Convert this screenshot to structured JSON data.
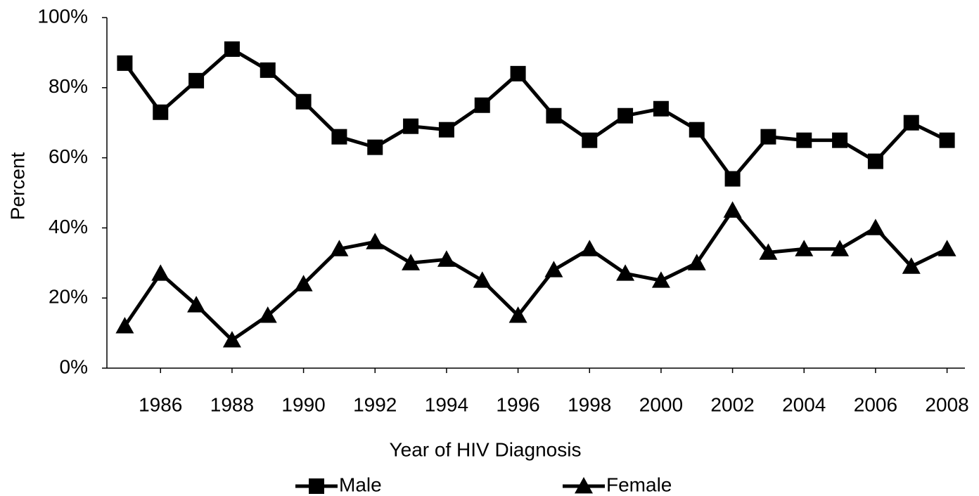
{
  "chart_data": {
    "type": "line",
    "x_label": "Year of HIV Diagnosis",
    "y_label": "Percent",
    "x": [
      1985,
      1986,
      1987,
      1988,
      1989,
      1990,
      1991,
      1992,
      1993,
      1994,
      1995,
      1996,
      1997,
      1998,
      1999,
      2000,
      2001,
      2002,
      2003,
      2004,
      2005,
      2006,
      2007,
      2008
    ],
    "xlim": [
      1984.5,
      2008.5
    ],
    "xticks": [
      1986,
      1988,
      1990,
      1992,
      1994,
      1996,
      1998,
      2000,
      2002,
      2004,
      2006,
      2008
    ],
    "ylim": [
      0,
      100
    ],
    "yticks": [
      {
        "value": 0,
        "label": "0%"
      },
      {
        "value": 20,
        "label": "20%"
      },
      {
        "value": 40,
        "label": "40%"
      },
      {
        "value": 60,
        "label": "60%"
      },
      {
        "value": 80,
        "label": "80%"
      },
      {
        "value": 100,
        "label": "100%"
      }
    ],
    "grid": false,
    "legend": "bottom",
    "series": [
      {
        "name": "Male",
        "color": "#000000",
        "marker": "square",
        "values": [
          87,
          73,
          82,
          91,
          85,
          76,
          66,
          63,
          69,
          68,
          75,
          84,
          72,
          65,
          72,
          74,
          68,
          54,
          66,
          65,
          65,
          59,
          70,
          65
        ]
      },
      {
        "name": "Female",
        "color": "#000000",
        "marker": "triangle",
        "values": [
          12,
          27,
          18,
          8,
          15,
          24,
          34,
          36,
          30,
          31,
          25,
          15,
          28,
          34,
          27,
          25,
          30,
          45,
          33,
          34,
          34,
          40,
          29,
          34
        ]
      }
    ]
  }
}
